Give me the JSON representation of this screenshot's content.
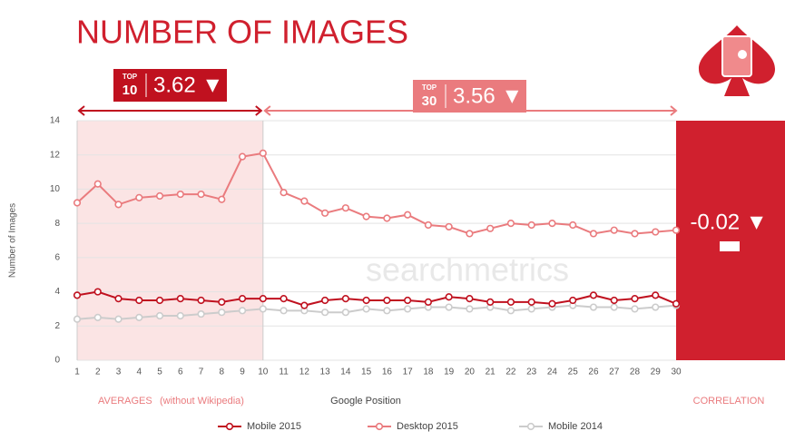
{
  "chart_data": {
    "type": "line",
    "title": "NUMBER OF IMAGES",
    "y_label": "Number of Images",
    "x_label": "Google Position",
    "x": [
      1,
      2,
      3,
      4,
      5,
      6,
      7,
      8,
      9,
      10,
      11,
      12,
      13,
      14,
      15,
      16,
      17,
      18,
      19,
      20,
      21,
      22,
      23,
      24,
      25,
      26,
      27,
      28,
      29,
      30
    ],
    "xlim": [
      1,
      30
    ],
    "ylim": [
      0,
      14
    ],
    "yticks": [
      0,
      2,
      4,
      6,
      8,
      10,
      12,
      14
    ],
    "grid": true,
    "legend": "bottom",
    "series": [
      {
        "name": "Mobile 2015",
        "color": "#c0111f",
        "values": [
          3.8,
          4.0,
          3.6,
          3.5,
          3.5,
          3.6,
          3.5,
          3.4,
          3.6,
          3.6,
          3.6,
          3.2,
          3.5,
          3.6,
          3.5,
          3.5,
          3.5,
          3.4,
          3.7,
          3.6,
          3.4,
          3.4,
          3.4,
          3.3,
          3.5,
          3.8,
          3.5,
          3.6,
          3.8,
          3.3
        ]
      },
      {
        "name": "Desktop 2015",
        "color": "#ea7b7e",
        "values": [
          9.2,
          10.3,
          9.1,
          9.5,
          9.6,
          9.7,
          9.7,
          9.4,
          11.9,
          12.1,
          9.8,
          9.3,
          8.6,
          8.9,
          8.4,
          8.3,
          8.5,
          7.9,
          7.8,
          7.4,
          7.7,
          8.0,
          7.9,
          8.0,
          7.9,
          7.4,
          7.6,
          7.4,
          7.5,
          7.6
        ]
      },
      {
        "name": "Mobile 2014",
        "color": "#cccccc",
        "values": [
          2.4,
          2.5,
          2.4,
          2.5,
          2.6,
          2.6,
          2.7,
          2.8,
          2.9,
          3.0,
          2.9,
          2.9,
          2.8,
          2.8,
          3.0,
          2.9,
          3.0,
          3.1,
          3.1,
          3.0,
          3.1,
          2.9,
          3.0,
          3.1,
          3.2,
          3.1,
          3.1,
          3.0,
          3.1,
          3.2
        ]
      }
    ],
    "top_badges": [
      {
        "label": "TOP",
        "rank": "10",
        "value": "3.62 ▼"
      },
      {
        "label": "TOP",
        "rank": "30",
        "value": "3.56 ▼"
      }
    ],
    "correlation_value": "-0.02 ▼",
    "averages_label": "AVERAGES",
    "averages_note": "(without Wikipedia)",
    "correlation_label": "CORRELATION",
    "watermark": "searchmetrics"
  }
}
